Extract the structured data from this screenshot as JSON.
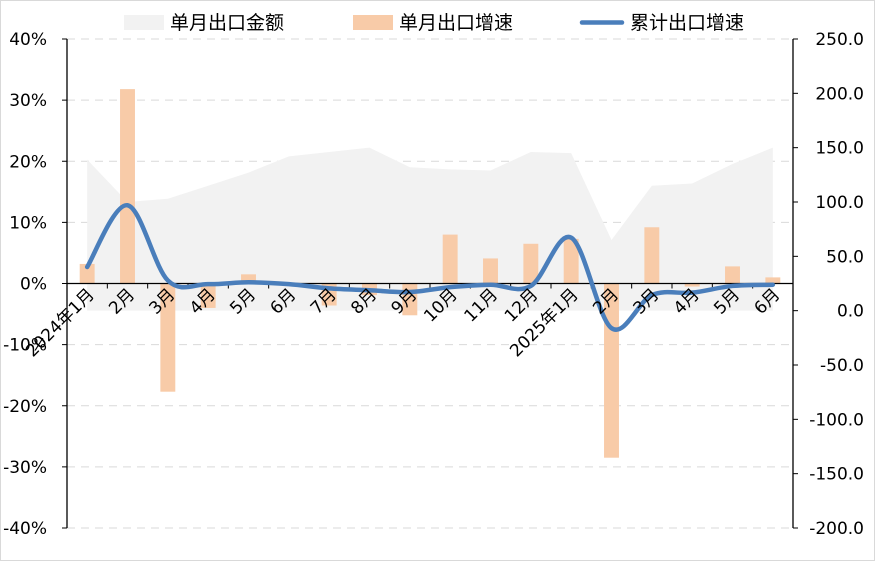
{
  "chart_data": {
    "type": "bar",
    "categories": [
      "2024年1月",
      "2月",
      "3月",
      "4月",
      "5月",
      "6月",
      "7月",
      "8月",
      "9月",
      "10月",
      "11月",
      "12月",
      "2025年1月",
      "2月",
      "3月",
      "4月",
      "5月",
      "6月"
    ],
    "series": [
      {
        "name": "单月出口金额",
        "type": "area",
        "axis": "right",
        "color": "#f2f2f2",
        "values": [
          139,
          100,
          103,
          115,
          127,
          142,
          146,
          150,
          132,
          130,
          129,
          146,
          145,
          65,
          115,
          117,
          135,
          150
        ]
      },
      {
        "name": "单月出口增速",
        "type": "bar",
        "axis": "left",
        "color": "#f8cba8",
        "values": [
          3.2,
          31.8,
          -17.7,
          -4.0,
          1.5,
          0.0,
          -3.6,
          -1.9,
          -5.2,
          8.0,
          4.1,
          6.5,
          7.3,
          -28.5,
          9.2,
          -0.5,
          2.8,
          1.0
        ]
      },
      {
        "name": "累计出口增速",
        "type": "line",
        "axis": "left",
        "color": "#4a7ebb",
        "values": [
          2.7,
          12.8,
          0.5,
          -0.1,
          0.2,
          -0.1,
          -0.8,
          -1.1,
          -1.4,
          -0.6,
          -0.2,
          -0.4,
          7.5,
          -7.3,
          -1.9,
          -1.5,
          -0.4,
          -0.2
        ]
      }
    ],
    "left_axis": {
      "min": -40,
      "max": 40,
      "step": 10,
      "ticks": [
        "-40%",
        "-30%",
        "-20%",
        "-10%",
        "0%",
        "10%",
        "20%",
        "30%",
        "40%"
      ]
    },
    "right_axis": {
      "min": -200,
      "max": 250,
      "step": 50,
      "ticks": [
        "-200.0",
        "-150.0",
        "-100.0",
        "-50.0",
        "0.0",
        "50.0",
        "100.0",
        "150.0",
        "200.0",
        "250.0"
      ]
    },
    "grid": true,
    "legend_position": "top"
  }
}
